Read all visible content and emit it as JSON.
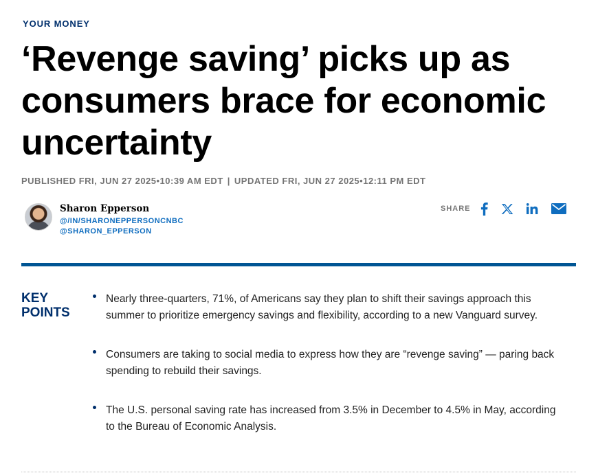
{
  "section": {
    "label": "YOUR MONEY"
  },
  "article": {
    "title": "‘Revenge saving’ picks up as consumers brace for economic uncertainty",
    "published": "PUBLISHED FRI, JUN 27 2025•10:39 AM EDT",
    "separator": "|",
    "updated": "UPDATED FRI, JUN 27 2025•12:11 PM EDT"
  },
  "author": {
    "name": "Sharon Epperson",
    "linkedin": "@/IN/SHARONEPPERSONCNBC",
    "twitter": "@SHARON_EPPERSON"
  },
  "share": {
    "label": "SHARE",
    "icons": [
      "facebook-icon",
      "x-icon",
      "linkedin-icon",
      "email-icon"
    ]
  },
  "key_points": {
    "title_line1": "KEY",
    "title_line2": "POINTS",
    "items": [
      "Nearly three-quarters, 71%, of Americans say they plan to shift their savings approach this summer to prioritize emergency savings and flexibility, according to a new Vanguard survey.",
      "Consumers are taking to social media to express how they are “revenge saving” — paring back spending to rebuild their savings.",
      "The U.S. personal saving rate has increased from 3.5% in December to 4.5% in May, according to the Bureau of Economic Analysis."
    ]
  },
  "colors": {
    "brand_navy": "#002f6c",
    "link_blue": "#0f6dbf",
    "divider_blue": "#005594",
    "meta_gray": "#747474"
  }
}
